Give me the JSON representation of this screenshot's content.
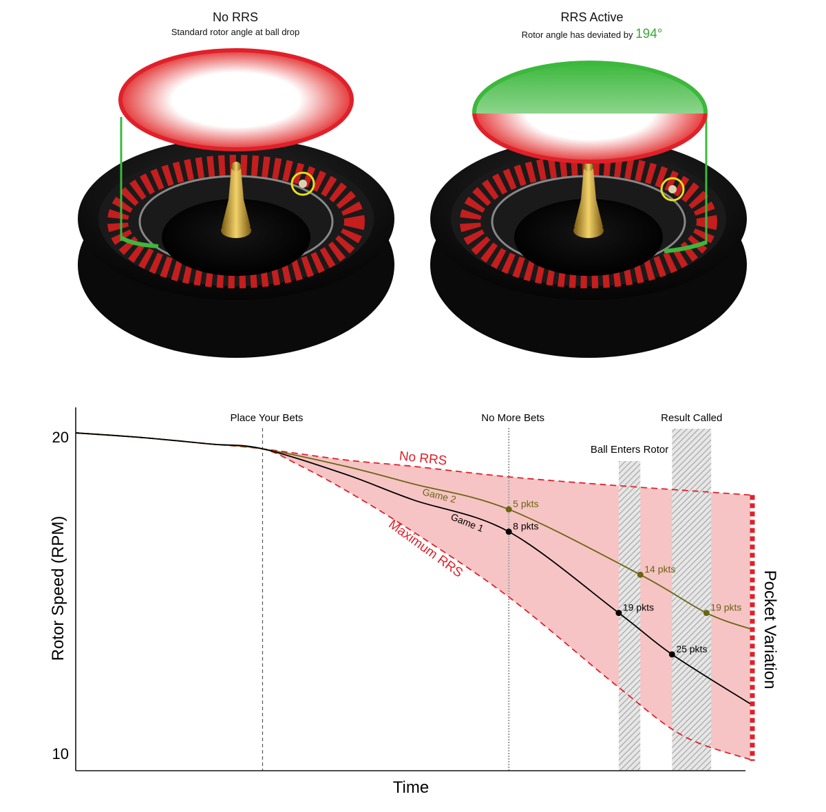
{
  "wheels": {
    "left": {
      "title": "No RRS",
      "subtitle": "Standard rotor angle at ball drop"
    },
    "right": {
      "title": "RRS Active",
      "subtitle_prefix": "Rotor angle has deviated by",
      "deviation": "194°"
    }
  },
  "colors": {
    "red": "#e0202a",
    "green": "#3cb83c",
    "band_fill": "#f6c4c4",
    "game1": "#000000",
    "game2": "#6b6413",
    "ball_ring": "#e8e020",
    "wheel": "#111111"
  },
  "chart_data": {
    "type": "line",
    "xlabel": "Time",
    "ylabel": "Rotor Speed (RPM)",
    "right_label": "Pocket Variation",
    "x_ticks": [],
    "y_ticks": [
      "20",
      "10"
    ],
    "x_range": [
      0,
      100
    ],
    "y_range": [
      9.4,
      20.8
    ],
    "events": [
      {
        "name": "Place Your Bets",
        "x": 27.7
      },
      {
        "name": "No More Bets",
        "x": 64.2
      },
      {
        "name": "Ball Enters Rotor",
        "x_start": 80.5,
        "x_end": 83.7
      },
      {
        "name": "Result Called",
        "x_start": 88.4,
        "x_end": 94.2
      }
    ],
    "series": [
      {
        "name": "No RRS",
        "style": "dashed",
        "x": [
          0,
          10,
          20,
          27.7,
          40,
          50,
          64.2,
          80,
          90,
          100
        ],
        "y": [
          20.0,
          19.85,
          19.65,
          19.5,
          19.15,
          18.95,
          18.62,
          18.35,
          18.2,
          18.05
        ]
      },
      {
        "name": "Maximum RRS",
        "style": "dashed",
        "x": [
          0,
          10,
          20,
          27.7,
          33,
          40,
          50,
          64.2,
          80,
          90,
          100
        ],
        "y": [
          20.0,
          19.85,
          19.65,
          19.5,
          19.0,
          18.2,
          16.9,
          14.85,
          12.1,
          10.5,
          9.75
        ]
      },
      {
        "name": "Game 2",
        "x": [
          0,
          10,
          20,
          27.7,
          40,
          50,
          64.2,
          83.7,
          93.5,
          100
        ],
        "y": [
          20.0,
          19.85,
          19.65,
          19.5,
          18.95,
          18.4,
          17.6,
          15.55,
          14.35,
          13.85
        ]
      },
      {
        "name": "Game 1",
        "x": [
          0,
          10,
          20,
          27.7,
          40,
          50,
          64.2,
          80.5,
          88.4,
          100
        ],
        "y": [
          20.0,
          19.85,
          19.65,
          19.5,
          18.7,
          17.9,
          16.9,
          14.35,
          13.05,
          11.5
        ]
      }
    ],
    "points": [
      {
        "series": "Game 2",
        "x": 64.2,
        "y": 17.6,
        "label": "5 pkts"
      },
      {
        "series": "Game 1",
        "x": 64.2,
        "y": 16.9,
        "label": "8 pkts"
      },
      {
        "series": "Game 2",
        "x": 83.7,
        "y": 15.55,
        "label": "14 pkts"
      },
      {
        "series": "Game 1",
        "x": 80.5,
        "y": 14.35,
        "label": "19 pkts"
      },
      {
        "series": "Game 2",
        "x": 93.5,
        "y": 14.35,
        "label": "19 pkts"
      },
      {
        "series": "Game 1",
        "x": 88.4,
        "y": 13.05,
        "label": "25 pkts"
      }
    ]
  }
}
